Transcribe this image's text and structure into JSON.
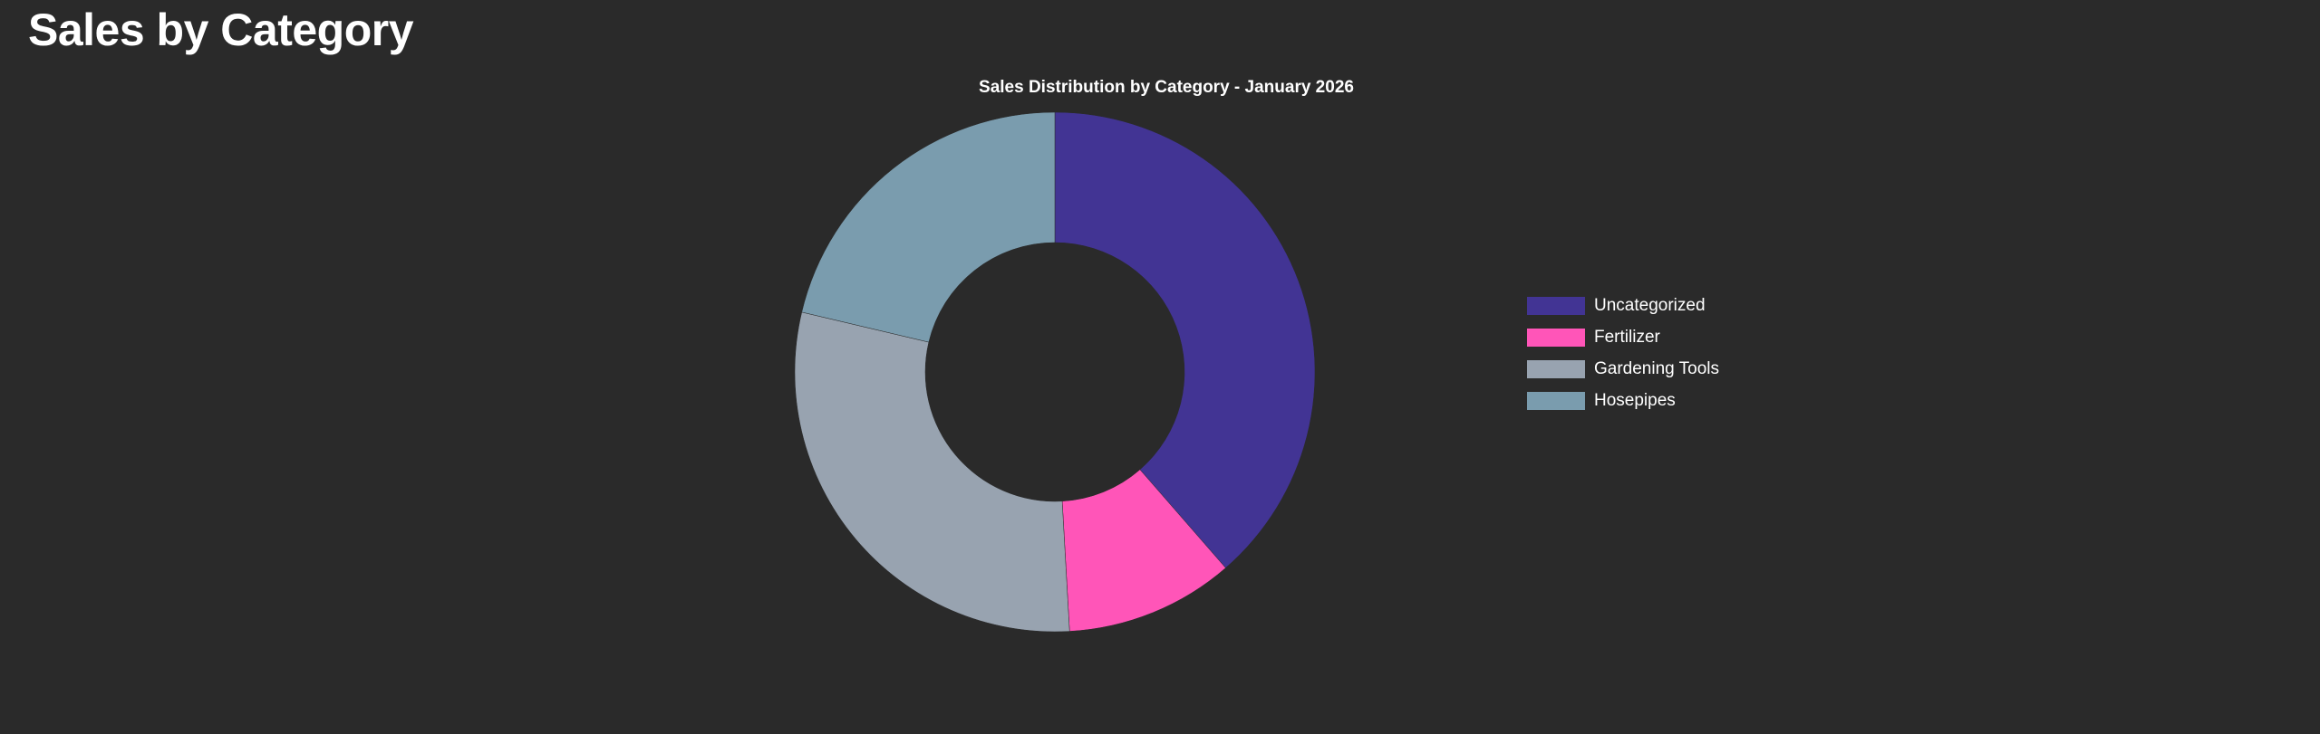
{
  "page": {
    "title": "Sales by Category"
  },
  "chart_data": {
    "type": "pie",
    "variant": "doughnut",
    "title": "Sales Distribution by Category - January 2026",
    "categories": [
      "Uncategorized",
      "Fertilizer",
      "Gardening Tools",
      "Hosepipes"
    ],
    "values": [
      38.6,
      10.5,
      29.6,
      21.3
    ],
    "unit": "percent share (estimated from slice angles)",
    "colors": [
      "#423494",
      "#ff55b8",
      "#98a3b0",
      "#7a9cae"
    ],
    "legend_position": "right",
    "start_angle": "top, clockwise"
  },
  "legend": {
    "items": [
      {
        "label": "Uncategorized",
        "color": "#423494"
      },
      {
        "label": "Fertilizer",
        "color": "#ff55b8"
      },
      {
        "label": "Gardening Tools",
        "color": "#98a3b0"
      },
      {
        "label": "Hosepipes",
        "color": "#7a9cae"
      }
    ]
  },
  "colors": {
    "background": "#2a2a2a",
    "text": "#ffffff"
  }
}
